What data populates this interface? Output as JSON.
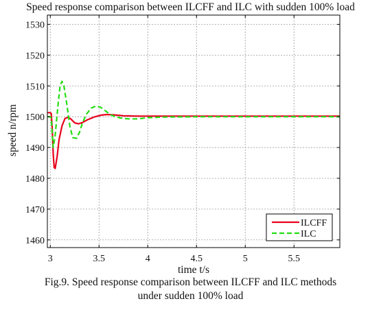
{
  "chart_data": {
    "type": "line",
    "title": "Speed response comparison between ILCFF and ILC with sudden 100% load",
    "xlabel": "time t/s",
    "ylabel": "speed n/rpm",
    "xlim": [
      2.97,
      5.97
    ],
    "ylim": [
      1457.5,
      1533
    ],
    "xticks": [
      3,
      3.5,
      4,
      4.5,
      5,
      5.5
    ],
    "xtick_labels": [
      "3",
      "3.5",
      "4",
      "4.5",
      "5",
      "5.5"
    ],
    "yticks": [
      1460,
      1470,
      1480,
      1490,
      1500,
      1510,
      1520,
      1530
    ],
    "ytick_labels": [
      "1460",
      "1470",
      "1480",
      "1490",
      "1500",
      "1510",
      "1520",
      "1530"
    ],
    "grid": true,
    "legend_position": "bottom-right",
    "series": [
      {
        "name": "ILCFF",
        "color": "#e8001c",
        "style": "solid",
        "x": [
          2.97,
          3.0,
          3.01,
          3.02,
          3.03,
          3.04,
          3.05,
          3.07,
          3.09,
          3.12,
          3.15,
          3.18,
          3.21,
          3.25,
          3.29,
          3.33,
          3.38,
          3.45,
          3.52,
          3.58,
          3.65,
          3.75,
          3.9,
          4.1,
          4.5,
          5.0,
          5.5,
          5.97
        ],
        "y": [
          1501.3,
          1501.3,
          1501.0,
          1496.0,
          1488.0,
          1483.5,
          1483.2,
          1487.0,
          1492.5,
          1497.0,
          1499.4,
          1499.8,
          1499.3,
          1498.0,
          1497.7,
          1498.1,
          1499.0,
          1499.9,
          1500.5,
          1500.7,
          1500.6,
          1500.3,
          1500.2,
          1500.2,
          1500.2,
          1500.2,
          1500.2,
          1500.2
        ]
      },
      {
        "name": "ILC",
        "color": "#22dd11",
        "style": "dashed",
        "x": [
          2.97,
          3.0,
          3.01,
          3.02,
          3.03,
          3.05,
          3.08,
          3.1,
          3.12,
          3.14,
          3.17,
          3.2,
          3.23,
          3.27,
          3.3,
          3.33,
          3.37,
          3.42,
          3.47,
          3.52,
          3.57,
          3.62,
          3.67,
          3.72,
          3.8,
          3.9,
          4.0,
          4.2,
          4.5,
          5.0,
          5.5,
          5.97
        ],
        "y": [
          1500.0,
          1500.0,
          1499.5,
          1494.0,
          1490.0,
          1494.0,
          1504.0,
          1510.0,
          1511.5,
          1510.0,
          1504.0,
          1497.0,
          1493.2,
          1493.0,
          1495.0,
          1498.0,
          1500.8,
          1502.8,
          1503.5,
          1503.0,
          1501.8,
          1500.6,
          1500.0,
          1499.6,
          1499.3,
          1499.3,
          1499.7,
          1499.9,
          1500.0,
          1500.0,
          1500.0,
          1500.0
        ]
      }
    ]
  },
  "caption": {
    "line1": "Fig.9. Speed response comparison between ILCFF and ILC methods",
    "line2": "under sudden 100% load"
  }
}
